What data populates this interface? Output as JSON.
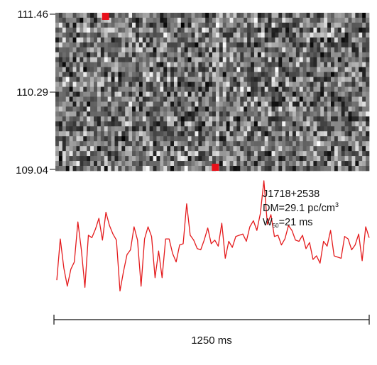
{
  "chart_data": [
    {
      "type": "heatmap",
      "colormap": "grayscale",
      "yaxis_tick_labels": [
        "111.46",
        "110.29",
        "109.04"
      ],
      "ylim": [
        109.04,
        111.46
      ],
      "n_rows": 32,
      "n_cols": 90,
      "markers": [
        {
          "color": "#e8101a",
          "y": 111.46,
          "time_fraction": 0.16
        },
        {
          "color": "#e8101a",
          "y": 109.04,
          "time_fraction": 0.51
        }
      ],
      "bright_vertical_streak_time_fraction": 0.51
    },
    {
      "type": "line",
      "color": "#e41a1c",
      "x_unit": "ms",
      "x": [
        0,
        14,
        28,
        42,
        56,
        70,
        84,
        98,
        112,
        126,
        140,
        154,
        168,
        182,
        196,
        210,
        224,
        238,
        252,
        266,
        280,
        294,
        308,
        322,
        336,
        350,
        364,
        378,
        392,
        406,
        420,
        434,
        448,
        462,
        476,
        490,
        504,
        518,
        532,
        546,
        560,
        574,
        588,
        602,
        616,
        630,
        644,
        658,
        672,
        686,
        700,
        714,
        728,
        742,
        756,
        770,
        784,
        798,
        812,
        826,
        840,
        854,
        868,
        882,
        896,
        910,
        924,
        938,
        952,
        966,
        980,
        994,
        1008,
        1022,
        1036,
        1050,
        1064,
        1078,
        1092,
        1106,
        1120,
        1134,
        1148,
        1162,
        1176,
        1190,
        1204,
        1218,
        1232,
        1246
      ],
      "values": [
        0.18,
        0.52,
        0.28,
        0.13,
        0.27,
        0.33,
        0.66,
        0.43,
        0.12,
        0.55,
        0.53,
        0.6,
        0.69,
        0.51,
        0.74,
        0.63,
        0.56,
        0.51,
        0.09,
        0.25,
        0.39,
        0.43,
        0.62,
        0.51,
        0.13,
        0.52,
        0.62,
        0.54,
        0.2,
        0.42,
        0.2,
        0.52,
        0.52,
        0.4,
        0.33,
        0.47,
        0.48,
        0.81,
        0.55,
        0.51,
        0.44,
        0.43,
        0.51,
        0.61,
        0.48,
        0.51,
        0.46,
        0.65,
        0.36,
        0.5,
        0.45,
        0.54,
        0.55,
        0.56,
        0.5,
        0.62,
        0.67,
        0.59,
        0.73,
        1.0,
        0.64,
        0.72,
        0.54,
        0.55,
        0.47,
        0.52,
        0.63,
        0.59,
        0.51,
        0.5,
        0.55,
        0.44,
        0.49,
        0.35,
        0.38,
        0.32,
        0.5,
        0.46,
        0.59,
        0.38,
        0.37,
        0.36,
        0.54,
        0.52,
        0.43,
        0.47,
        0.56,
        0.34,
        0.62,
        0.53
      ],
      "annotations": {
        "name": "J1718+2538",
        "dm_prefix": "DM=29.1 pc/cm",
        "dm_sup": "3",
        "w_main": "W",
        "w_sub": "50",
        "w_suffix": "=21 ms"
      },
      "scale_bar_label": "1250 ms"
    }
  ]
}
